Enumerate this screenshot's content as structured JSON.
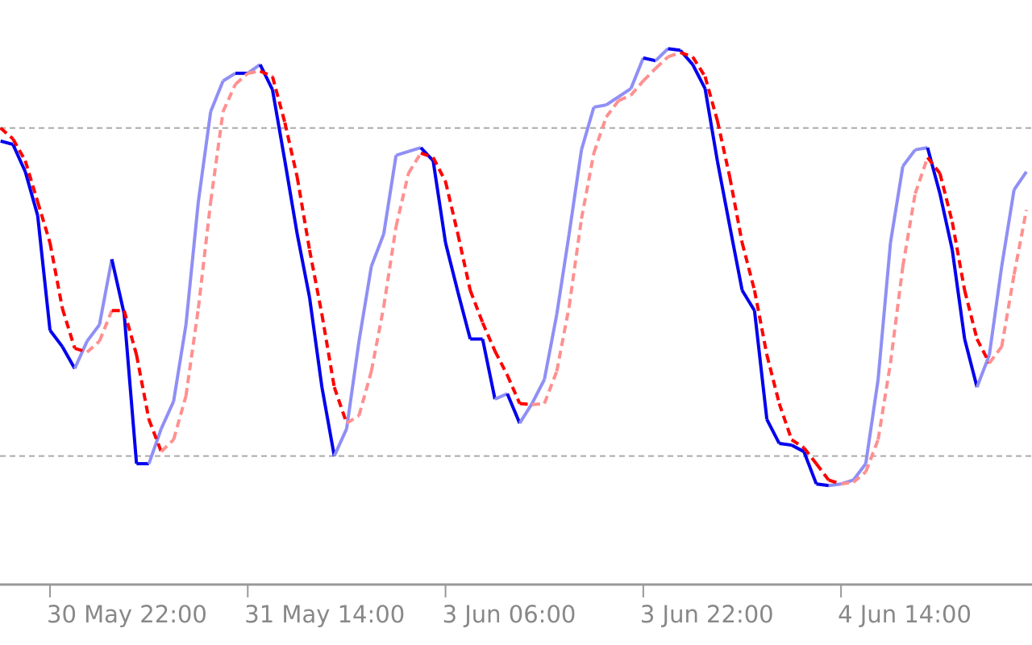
{
  "chart_data": {
    "type": "line",
    "categories": [
      null,
      null,
      null,
      null,
      "30 May 22:00",
      null,
      null,
      null,
      null,
      null,
      null,
      null,
      null,
      null,
      null,
      null,
      null,
      null,
      null,
      null,
      "31 May 14:00",
      null,
      null,
      null,
      null,
      null,
      null,
      null,
      null,
      null,
      null,
      null,
      null,
      null,
      null,
      null,
      "3 Jun 06:00",
      null,
      null,
      null,
      null,
      null,
      null,
      null,
      null,
      null,
      null,
      null,
      null,
      null,
      null,
      null,
      "3 Jun 22:00",
      null,
      null,
      null,
      null,
      null,
      null,
      null,
      null,
      null,
      null,
      null,
      null,
      null,
      null,
      null,
      "4 Jun 14:00",
      null,
      null,
      null,
      null,
      null,
      null,
      null,
      null,
      null,
      null,
      null,
      null,
      null,
      null,
      null
    ],
    "series": [
      {
        "color": "#0000ee",
        "rise_color": "#8f8ff5",
        "dash": false,
        "values": [
          77.6,
          77,
          72,
          64,
          43,
          40,
          36,
          41,
          44,
          56,
          46,
          18.6,
          18.6,
          25,
          30,
          44,
          66.5,
          83,
          88.6,
          90,
          90,
          91.6,
          87,
          74,
          60.6,
          49,
          32.6,
          20,
          25,
          41,
          54.7,
          60.6,
          75,
          75.7,
          76.4,
          74,
          59,
          50,
          41.4,
          41.4,
          30.4,
          31.4,
          26,
          29.6,
          34,
          45.9,
          60.6,
          76,
          83.8,
          84.2,
          85.7,
          87.2,
          92.8,
          92.3,
          94.5,
          94.2,
          91.6,
          87.2,
          73.9,
          62,
          50.3,
          46.6,
          26.7,
          22.3,
          22,
          20.8,
          14.9,
          14.6,
          14.9,
          15.6,
          18.6,
          34,
          59,
          73,
          76,
          76.4,
          68,
          57.7,
          41.4,
          32.6,
          38.5,
          54.7,
          68.7,
          72
        ]
      },
      {
        "color": "#ff0000",
        "rise_color": "#ff9090",
        "dash": true,
        "values": [
          80,
          78,
          74,
          66.5,
          59,
          47,
          39.7,
          39,
          41,
          46.6,
          46.6,
          38.5,
          26.7,
          20.8,
          23,
          31,
          47,
          66.5,
          83,
          88,
          90,
          90.4,
          89.4,
          81,
          71,
          57.7,
          45.9,
          32.6,
          26,
          27.4,
          35.5,
          47.3,
          62,
          71.7,
          75.4,
          74.6,
          70.2,
          60.6,
          50.3,
          44.4,
          39.2,
          34.8,
          29.6,
          29.4,
          29.6,
          35.5,
          47.3,
          63.4,
          75.4,
          82,
          85,
          86,
          88.6,
          90.9,
          93,
          93.8,
          93,
          89.4,
          81.3,
          71,
          59,
          50.3,
          38.5,
          29.6,
          23,
          21.5,
          18.6,
          15.6,
          14.9,
          15.2,
          17.1,
          23,
          37,
          54.7,
          68,
          74.6,
          71.7,
          62.8,
          50.3,
          41.4,
          37,
          40,
          53.2,
          65
        ]
      }
    ],
    "levels": [
      20,
      80
    ],
    "ylim": [
      -3.5,
      103.4
    ]
  }
}
